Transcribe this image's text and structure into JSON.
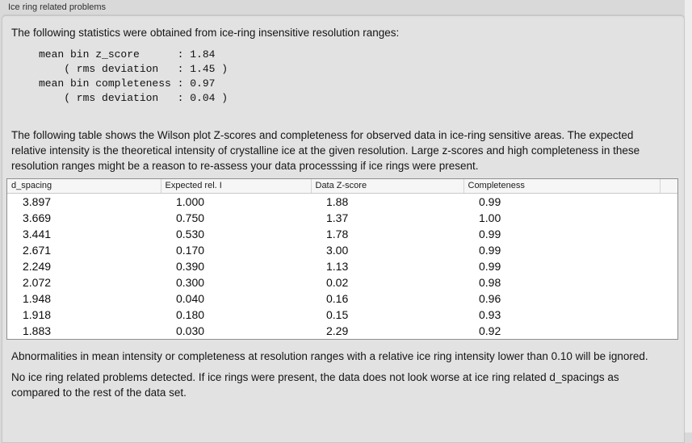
{
  "panel": {
    "label": "Ice ring related problems",
    "intro": "The following statistics were obtained from ice-ring insensitive resolution ranges:",
    "stats_block": "mean bin z_score      : 1.84\n    ( rms deviation   : 1.45 )\nmean bin completeness : 0.97\n    ( rms deviation   : 0.04 )",
    "table_description": "The following table shows the Wilson plot Z-scores and completeness for observed data in ice-ring sensitive areas. The expected relative intensity is the theoretical intensity of crystalline ice at the given resolution. Large z-scores and high completeness in these resolution ranges might be a reason to re-assess your data processsing if ice rings were present.",
    "table": {
      "columns": [
        "d_spacing",
        "Expected rel. I",
        "Data Z-score",
        "Completeness"
      ],
      "rows": [
        [
          "3.897",
          "1.000",
          "1.88",
          "0.99"
        ],
        [
          "3.669",
          "0.750",
          "1.37",
          "1.00"
        ],
        [
          "3.441",
          "0.530",
          "1.78",
          "0.99"
        ],
        [
          "2.671",
          "0.170",
          "3.00",
          "0.99"
        ],
        [
          "2.249",
          "0.390",
          "1.13",
          "0.99"
        ],
        [
          "2.072",
          "0.300",
          "0.02",
          "0.98"
        ],
        [
          "1.948",
          "0.040",
          "0.16",
          "0.96"
        ],
        [
          "1.918",
          "0.180",
          "0.15",
          "0.93"
        ],
        [
          "1.883",
          "0.030",
          "2.29",
          "0.92"
        ]
      ]
    },
    "ignore_note": "Abnormalities in mean intensity or completeness at resolution ranges with a relative ice ring intensity lower than 0.10 will be ignored.",
    "conclusion": "No ice ring related problems detected. If ice rings were present, the data does not look worse at ice ring related d_spacings as compared to the rest of the data set."
  },
  "colors": {
    "outer_bg": "#d9d9d9",
    "panel_bg": "#e2e2e2",
    "table_border": "#8f8f8f",
    "header_bg": "#f6f6f6"
  }
}
